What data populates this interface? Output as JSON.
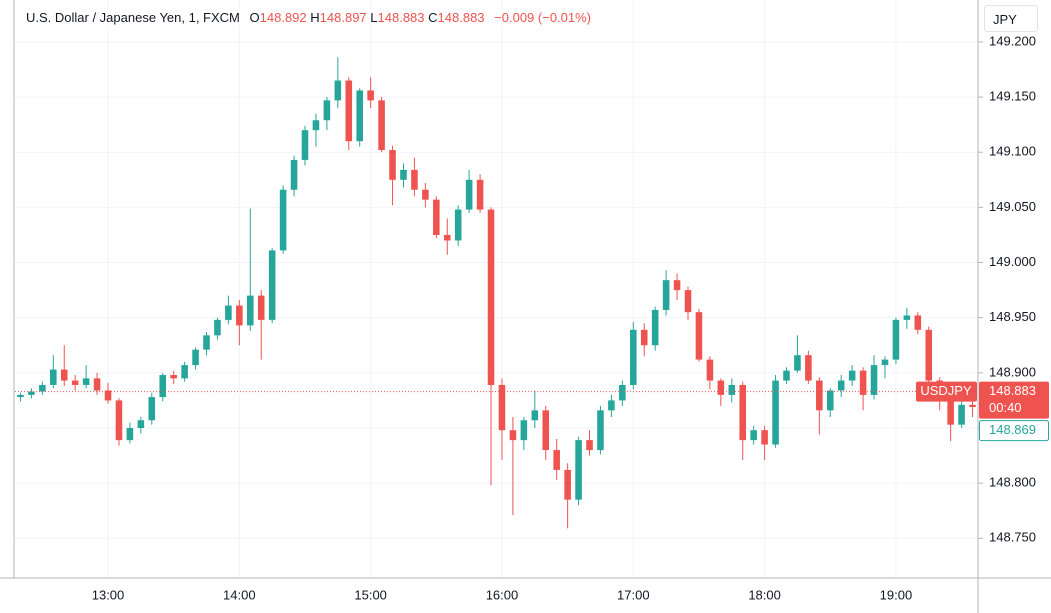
{
  "chart_data": {
    "type": "candlestick",
    "title": "U.S. Dollar / Japanese Yen, 1, FXCM",
    "ohlc_legend": [
      {
        "label": "O",
        "value": 148.892
      },
      {
        "label": "H",
        "value": 148.897
      },
      {
        "label": "L",
        "value": 148.883
      },
      {
        "label": "C",
        "value": 148.883
      }
    ],
    "change": "−0.009 (−0.01%)",
    "currency": "JPY",
    "last_price": {
      "symbol": "USDJPY",
      "value": 148.883,
      "countdown": "00:40"
    },
    "second_price": 148.869,
    "up_color": "#26a69a",
    "down_color": "#ef5350",
    "grid": true,
    "ylim": [
      148.714,
      149.238
    ],
    "yticks": [
      {
        "value": 148.75,
        "label": "148.750"
      },
      {
        "value": 148.8,
        "label": "148.800"
      },
      {
        "value": 148.85,
        "label": "148.850"
      },
      {
        "value": 148.9,
        "label": "148.900"
      },
      {
        "value": 148.95,
        "label": "148.950"
      },
      {
        "value": 149.0,
        "label": "149.000"
      },
      {
        "value": 149.05,
        "label": "149.050"
      },
      {
        "value": 149.1,
        "label": "149.100"
      },
      {
        "value": 149.15,
        "label": "149.150"
      },
      {
        "value": 149.2,
        "label": "149.200"
      }
    ],
    "categories": [
      null,
      null,
      null,
      null,
      null,
      null,
      null,
      null,
      "13:00",
      null,
      null,
      null,
      null,
      null,
      null,
      null,
      null,
      null,
      null,
      null,
      "14:00",
      null,
      null,
      null,
      null,
      null,
      null,
      null,
      null,
      null,
      null,
      null,
      "15:00",
      null,
      null,
      null,
      null,
      null,
      null,
      null,
      null,
      null,
      null,
      null,
      "16:00",
      null,
      null,
      null,
      null,
      null,
      null,
      null,
      null,
      null,
      null,
      null,
      "17:00",
      null,
      null,
      null,
      null,
      null,
      null,
      null,
      null,
      null,
      null,
      null,
      "18:00",
      null,
      null,
      null,
      null,
      null,
      null,
      null,
      null,
      null,
      null,
      null,
      "19:00",
      null,
      null,
      null,
      null,
      null,
      null,
      null
    ],
    "open": [
      148.878,
      148.88,
      148.883,
      148.889,
      148.903,
      148.893,
      148.889,
      148.895,
      148.884,
      148.875,
      148.839,
      148.85,
      148.857,
      148.878,
      148.898,
      148.895,
      148.907,
      148.921,
      148.934,
      148.948,
      148.961,
      148.943,
      148.97,
      148.948,
      149.011,
      149.066,
      149.093,
      149.12,
      149.129,
      149.147,
      149.165,
      149.11,
      149.156,
      149.147,
      149.102,
      149.075,
      149.084,
      149.066,
      149.057,
      149.025,
      149.02,
      149.048,
      149.075,
      149.048,
      148.889,
      148.848,
      148.839,
      148.857,
      148.866,
      148.83,
      148.812,
      148.785,
      148.839,
      148.83,
      148.866,
      148.875,
      148.889,
      148.939,
      148.925,
      148.957,
      148.984,
      148.975,
      148.955,
      148.912,
      148.893,
      148.88,
      148.889,
      148.839,
      148.848,
      148.835,
      148.893,
      148.902,
      148.916,
      148.893,
      148.866,
      148.884,
      148.893,
      148.902,
      148.88,
      148.907,
      148.912,
      148.948,
      148.952,
      148.939,
      148.893,
      148.875,
      148.853,
      148.871
    ],
    "high": [
      148.882,
      148.886,
      148.892,
      148.916,
      148.925,
      148.898,
      148.907,
      148.9,
      148.891,
      148.877,
      148.855,
      148.86,
      148.882,
      148.9,
      148.902,
      148.91,
      148.923,
      148.937,
      148.95,
      148.97,
      148.966,
      149.049,
      148.975,
      149.013,
      149.07,
      149.097,
      149.124,
      149.135,
      149.15,
      149.186,
      149.168,
      149.158,
      149.168,
      149.15,
      149.106,
      149.09,
      149.095,
      149.072,
      149.06,
      149.04,
      149.052,
      149.084,
      149.08,
      149.05,
      148.895,
      148.86,
      148.86,
      148.884,
      148.87,
      148.84,
      148.818,
      148.842,
      148.848,
      148.87,
      148.88,
      148.893,
      148.946,
      148.945,
      148.96,
      148.993,
      148.99,
      148.978,
      148.958,
      148.915,
      148.895,
      148.895,
      148.892,
      148.852,
      148.852,
      148.898,
      148.905,
      148.934,
      148.92,
      148.896,
      148.886,
      148.898,
      148.907,
      148.905,
      148.916,
      148.915,
      148.95,
      148.959,
      148.955,
      148.942,
      148.896,
      148.88,
      148.88,
      148.878
    ],
    "low": [
      148.874,
      148.877,
      148.88,
      148.886,
      148.888,
      148.884,
      148.886,
      148.88,
      148.872,
      148.834,
      148.836,
      148.845,
      148.853,
      148.874,
      148.89,
      148.892,
      148.903,
      148.916,
      148.93,
      148.944,
      148.925,
      148.938,
      148.912,
      148.945,
      149.008,
      149.06,
      149.088,
      149.105,
      149.12,
      149.14,
      149.102,
      149.105,
      149.14,
      149.1,
      149.052,
      149.068,
      149.06,
      149.05,
      149.022,
      149.007,
      149.015,
      149.045,
      149.045,
      148.798,
      148.821,
      148.771,
      148.83,
      148.85,
      148.821,
      148.803,
      148.759,
      148.78,
      148.825,
      148.826,
      148.86,
      148.87,
      148.885,
      148.915,
      148.92,
      148.952,
      148.966,
      148.948,
      148.91,
      148.885,
      148.87,
      148.873,
      148.821,
      148.835,
      148.821,
      148.832,
      148.89,
      148.9,
      148.89,
      148.844,
      148.86,
      148.878,
      148.888,
      148.866,
      148.876,
      148.895,
      148.908,
      148.94,
      148.935,
      148.89,
      148.866,
      148.838,
      148.85,
      148.86
    ],
    "close": [
      148.88,
      148.883,
      148.889,
      148.903,
      148.893,
      148.889,
      148.895,
      148.884,
      148.875,
      148.839,
      148.85,
      148.857,
      148.878,
      148.898,
      148.895,
      148.907,
      148.921,
      148.934,
      148.948,
      148.961,
      148.943,
      148.97,
      148.948,
      149.011,
      149.066,
      149.093,
      149.12,
      149.129,
      149.147,
      149.165,
      149.11,
      149.156,
      149.147,
      149.102,
      149.075,
      149.084,
      149.066,
      149.057,
      149.025,
      149.02,
      149.048,
      149.075,
      149.048,
      148.889,
      148.848,
      148.839,
      148.857,
      148.866,
      148.83,
      148.812,
      148.785,
      148.839,
      148.83,
      148.866,
      148.875,
      148.889,
      148.939,
      148.925,
      148.957,
      148.984,
      148.975,
      148.955,
      148.912,
      148.893,
      148.88,
      148.889,
      148.839,
      148.848,
      148.835,
      148.893,
      148.902,
      148.916,
      148.893,
      148.866,
      148.884,
      148.893,
      148.902,
      148.88,
      148.907,
      148.912,
      148.948,
      148.952,
      148.939,
      148.893,
      148.875,
      148.853,
      148.871,
      148.869
    ]
  }
}
